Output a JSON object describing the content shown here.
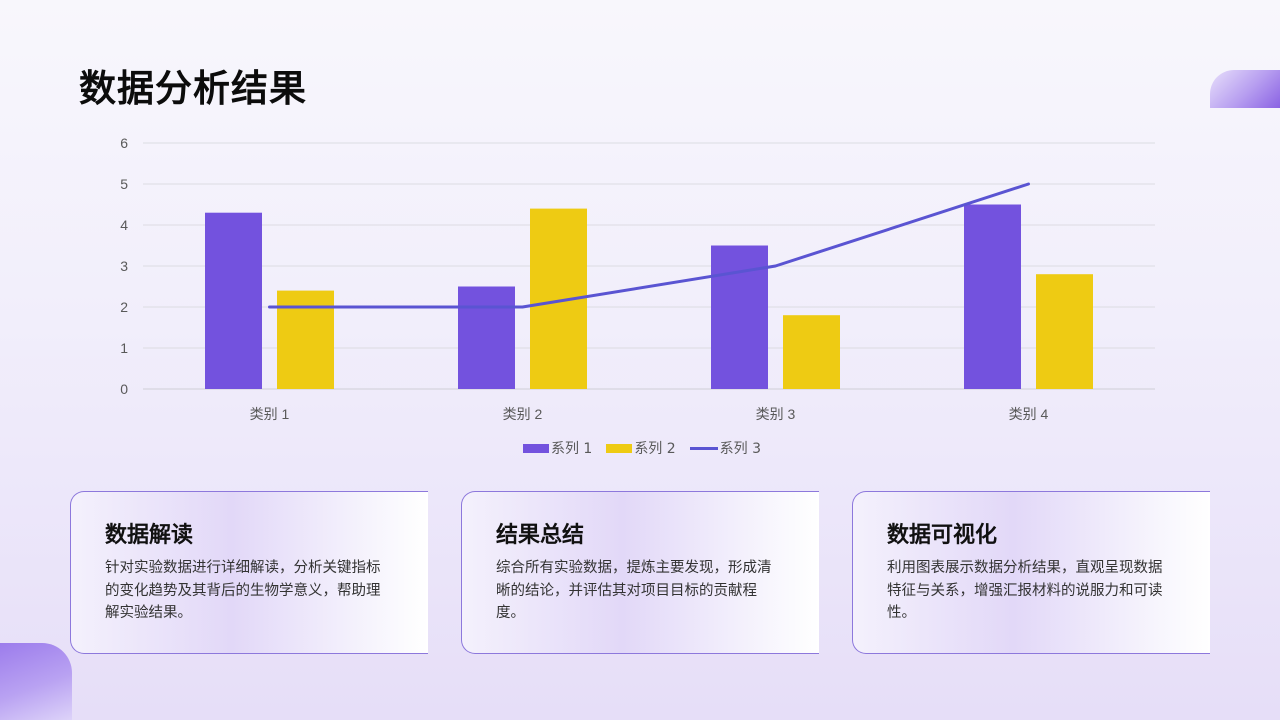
{
  "page_title": "数据分析结果",
  "chart_data": {
    "type": "bar",
    "categories": [
      "类别 1",
      "类别 2",
      "类别 3",
      "类别 4"
    ],
    "series": [
      {
        "name": "系列 1",
        "type": "bar",
        "color": "#7352de",
        "values": [
          4.3,
          2.5,
          3.5,
          4.5
        ]
      },
      {
        "name": "系列 2",
        "type": "bar",
        "color": "#eecb13",
        "values": [
          2.4,
          4.4,
          1.8,
          2.8
        ]
      },
      {
        "name": "系列 3",
        "type": "line",
        "color": "#5a54d2",
        "values": [
          2,
          2,
          3,
          5
        ]
      }
    ],
    "ylim": [
      0,
      6
    ],
    "yticks": [
      "0",
      "1",
      "2",
      "3",
      "4",
      "5",
      "6"
    ],
    "grid": true,
    "legend_position": "bottom",
    "title": "",
    "xlabel": "",
    "ylabel": ""
  },
  "cards": [
    {
      "title": "数据解读",
      "body": "针对实验数据进行详细解读，分析关键指标的变化趋势及其背后的生物学意义，帮助理解实验结果。"
    },
    {
      "title": "结果总结",
      "body": "综合所有实验数据，提炼主要发现，形成清晰的结论，并评估其对项目目标的贡献程度。"
    },
    {
      "title": "数据可视化",
      "body": "利用图表展示数据分析结果，直观呈现数据特征与关系，增强汇报材料的说服力和可读性。"
    }
  ]
}
